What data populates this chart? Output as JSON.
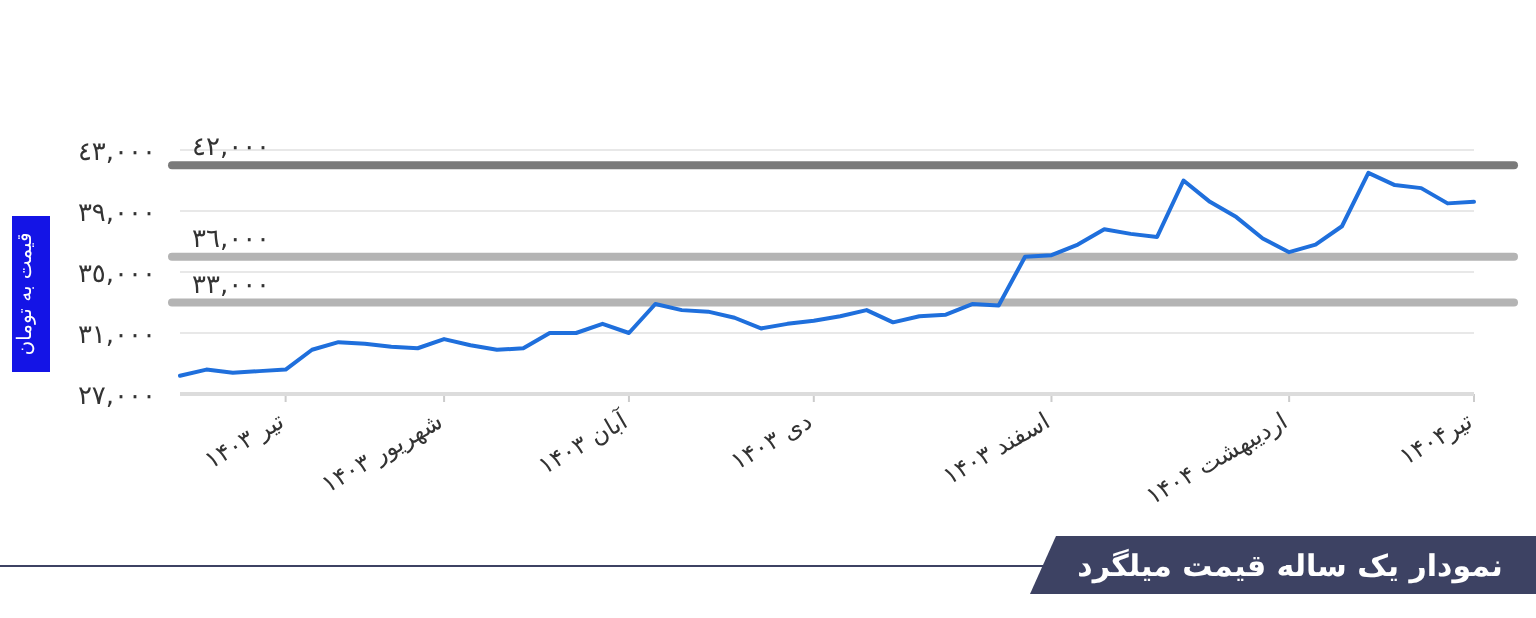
{
  "chart_data": {
    "type": "line",
    "title": "نمودار یک ساله قیمت میلگرد",
    "ylabel": "قیمت به تومان",
    "categories": [
      null,
      null,
      null,
      null,
      "تیر ۱۴۰۳",
      null,
      null,
      null,
      null,
      null,
      "شهریور ۱۴۰۳",
      null,
      null,
      null,
      null,
      null,
      null,
      "آبان ۱۴۰۳",
      null,
      null,
      null,
      null,
      null,
      null,
      "دی ۱۴۰۳",
      null,
      null,
      null,
      null,
      null,
      null,
      null,
      null,
      "اسفند ۱۴۰۳",
      null,
      null,
      null,
      null,
      null,
      null,
      null,
      null,
      "اردیبهشت ۱۴۰۴",
      null,
      null,
      null,
      null,
      null,
      null,
      "تیر۱۴۰۴"
    ],
    "series": [
      {
        "color": "#1f6fdc",
        "values": [
          28200,
          28600,
          28400,
          28500,
          28600,
          29900,
          30400,
          30300,
          30100,
          30000,
          30600,
          30200,
          29900,
          30000,
          31000,
          31000,
          31600,
          31000,
          32900,
          32500,
          32400,
          32000,
          31300,
          31600,
          31800,
          32100,
          32500,
          31700,
          32100,
          32200,
          32900,
          32800,
          36000,
          36100,
          36800,
          37800,
          37500,
          37300,
          41000,
          39600,
          38600,
          37200,
          36300,
          36800,
          38000,
          41500,
          40700,
          40500,
          39500,
          39600
        ]
      }
    ],
    "ylim": [
      27000,
      43000
    ],
    "yticks": [
      {
        "value": 27000,
        "label": "٢٧,٠٠٠"
      },
      {
        "value": 31000,
        "label": "٣١,٠٠٠"
      },
      {
        "value": 35000,
        "label": "٣٥,٠٠٠"
      },
      {
        "value": 39000,
        "label": "٣٩,٠٠٠"
      },
      {
        "value": 43000,
        "label": "٤٣,٠٠٠"
      }
    ],
    "grid": "y",
    "ref_lines": [
      {
        "axis": "y",
        "value": 33000,
        "label": "٣٣,٠٠٠",
        "color": "#b4b4b4"
      },
      {
        "axis": "y",
        "value": 36000,
        "label": "٣٦,٠٠٠",
        "color": "#b4b4b4"
      },
      {
        "axis": "y",
        "value": 42000,
        "label": "٤٢,٠٠٠",
        "color": "#7a7a7a"
      }
    ]
  }
}
